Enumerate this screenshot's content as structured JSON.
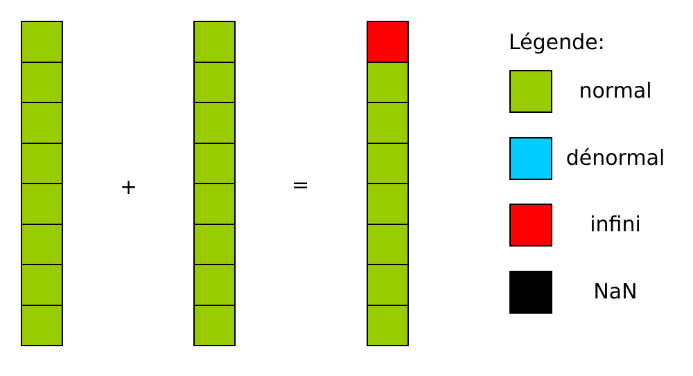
{
  "colors": {
    "normal": "#99cc00",
    "denormal": "#00ccff",
    "infinite": "#ff0000",
    "nan": "#000000"
  },
  "columns": {
    "operand_a": [
      "normal",
      "normal",
      "normal",
      "normal",
      "normal",
      "normal",
      "normal",
      "normal"
    ],
    "operand_b": [
      "normal",
      "normal",
      "normal",
      "normal",
      "normal",
      "normal",
      "normal",
      "normal"
    ],
    "result": [
      "infinite",
      "normal",
      "normal",
      "normal",
      "normal",
      "normal",
      "normal",
      "normal"
    ]
  },
  "operators": {
    "plus": "+",
    "equals": "="
  },
  "legend": {
    "title": "Légende:",
    "items": [
      {
        "key": "normal",
        "label": "normal"
      },
      {
        "key": "denormal",
        "label": "dénormal"
      },
      {
        "key": "infinite",
        "label": "infini"
      },
      {
        "key": "nan",
        "label": "NaN"
      }
    ]
  }
}
